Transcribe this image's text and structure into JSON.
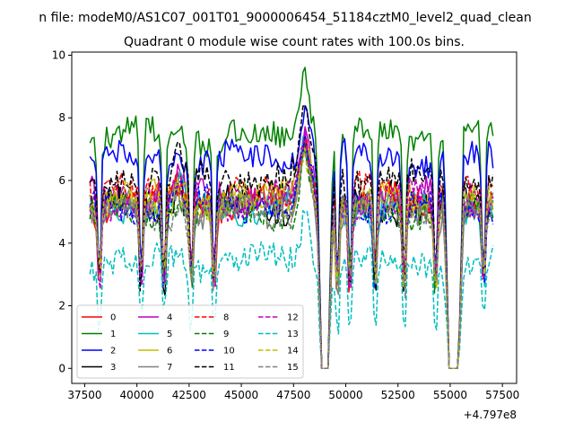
{
  "figure": {
    "suptitle": "n file: modeM0/AS1C07_001T01_9000006454_51184cztM0_level2_quad_clean",
    "title": "Quadrant 0 module wise count rates with 100.0s bins.",
    "offset_label": "+4.797e8"
  },
  "chart_data": {
    "type": "line",
    "title": "Quadrant 0 module wise count rates with 100.0s bins.",
    "xlabel": "",
    "ylabel": "",
    "x_offset": 479700000,
    "xlim": [
      36880,
      58180
    ],
    "ylim": [
      -0.48,
      10.1
    ],
    "xticks": [
      37500,
      40000,
      42500,
      45000,
      47500,
      50000,
      52500,
      55000,
      57500
    ],
    "xtick_labels": [
      "37500",
      "40000",
      "42500",
      "45000",
      "47500",
      "50000",
      "52500",
      "55000",
      "57500"
    ],
    "yticks": [
      0,
      2,
      4,
      6,
      8,
      10
    ],
    "ytick_labels": [
      "0",
      "2",
      "4",
      "6",
      "8",
      "10"
    ],
    "grid": false,
    "legend_position": "lower-left",
    "legend_columns": 4,
    "gaps": [
      [
        48850,
        49150
      ],
      [
        54950,
        55400
      ]
    ],
    "dips": [
      38200,
      40200,
      41300,
      42600,
      43700,
      49600,
      50200,
      51400,
      52800,
      54300,
      56600
    ],
    "series": [
      {
        "name": "0",
        "color": "#ff0000",
        "dash": "solid",
        "base": 5.3,
        "peak": 7.2
      },
      {
        "name": "1",
        "color": "#008000",
        "dash": "solid",
        "base": 7.4,
        "peak": 9.6
      },
      {
        "name": "2",
        "color": "#0000ff",
        "dash": "solid",
        "base": 6.7,
        "peak": 8.4
      },
      {
        "name": "3",
        "color": "#000000",
        "dash": "solid",
        "base": 5.2,
        "peak": 7.0
      },
      {
        "name": "4",
        "color": "#bf00bf",
        "dash": "solid",
        "base": 5.5,
        "peak": 7.3
      },
      {
        "name": "5",
        "color": "#00bfbf",
        "dash": "solid",
        "base": 5.2,
        "peak": 7.0
      },
      {
        "name": "6",
        "color": "#bfbf00",
        "dash": "solid",
        "base": 5.4,
        "peak": 7.1
      },
      {
        "name": "7",
        "color": "#808080",
        "dash": "solid",
        "base": 5.1,
        "peak": 6.9
      },
      {
        "name": "8",
        "color": "#ff0000",
        "dash": "dashed",
        "base": 5.6,
        "peak": 7.4
      },
      {
        "name": "9",
        "color": "#008000",
        "dash": "dashed",
        "base": 5.0,
        "peak": 6.8
      },
      {
        "name": "10",
        "color": "#0000ff",
        "dash": "dashed",
        "base": 5.2,
        "peak": 7.1
      },
      {
        "name": "11",
        "color": "#000000",
        "dash": "dashed",
        "base": 6.1,
        "peak": 7.9
      },
      {
        "name": "12",
        "color": "#bf00bf",
        "dash": "dashed",
        "base": 5.4,
        "peak": 7.2
      },
      {
        "name": "13",
        "color": "#00bfbf",
        "dash": "dashed",
        "base": 3.4,
        "peak": 4.8
      },
      {
        "name": "14",
        "color": "#bfbf00",
        "dash": "dashed",
        "base": 5.3,
        "peak": 7.0
      },
      {
        "name": "15",
        "color": "#808080",
        "dash": "dashed",
        "base": 5.0,
        "peak": 6.8
      }
    ]
  }
}
